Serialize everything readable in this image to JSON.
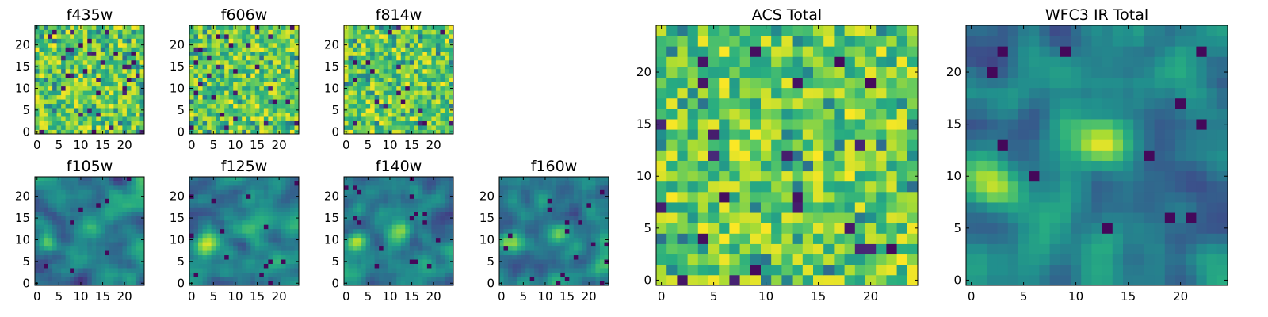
{
  "colormap": "viridis",
  "axis_frame_color": "#000000",
  "chart_data": [
    {
      "type": "heatmap",
      "title": "f435w",
      "grid": [
        25,
        25
      ],
      "xticks": [
        "0",
        "5",
        "10",
        "15",
        "20"
      ],
      "yticks": [
        "0",
        "5",
        "10",
        "15",
        "20"
      ],
      "xlim": [
        0,
        25
      ],
      "ylim": [
        0,
        25
      ],
      "pattern": "noise-uniform",
      "value_range": [
        0,
        1
      ]
    },
    {
      "type": "heatmap",
      "title": "f606w",
      "grid": [
        25,
        25
      ],
      "xticks": [
        "0",
        "5",
        "10",
        "15",
        "20"
      ],
      "yticks": [
        "0",
        "5",
        "10",
        "15",
        "20"
      ],
      "xlim": [
        0,
        25
      ],
      "ylim": [
        0,
        25
      ],
      "pattern": "noise-uniform",
      "value_range": [
        0,
        1
      ]
    },
    {
      "type": "heatmap",
      "title": "f814w",
      "grid": [
        25,
        25
      ],
      "xticks": [
        "0",
        "5",
        "10",
        "15",
        "20"
      ],
      "yticks": [
        "0",
        "5",
        "10",
        "15",
        "20"
      ],
      "xlim": [
        0,
        25
      ],
      "ylim": [
        0,
        25
      ],
      "pattern": "noise-uniform",
      "value_range": [
        0,
        1
      ]
    },
    {
      "type": "heatmap",
      "title": "f105w",
      "grid": [
        25,
        25
      ],
      "xticks": [
        "0",
        "5",
        "10",
        "15",
        "20"
      ],
      "yticks": [
        "0",
        "5",
        "10",
        "15",
        "20"
      ],
      "xlim": [
        0,
        25
      ],
      "ylim": [
        0,
        25
      ],
      "pattern": "smooth-blobs",
      "blobs": [
        {
          "x": 2.5,
          "y": 9.5,
          "amp": 0.45
        },
        {
          "x": 13,
          "y": 12.5,
          "amp": 0.3
        }
      ]
    },
    {
      "type": "heatmap",
      "title": "f125w",
      "grid": [
        25,
        25
      ],
      "xticks": [
        "0",
        "5",
        "10",
        "15",
        "20"
      ],
      "yticks": [
        "0",
        "5",
        "10",
        "15",
        "20"
      ],
      "xlim": [
        0,
        25
      ],
      "ylim": [
        0,
        25
      ],
      "pattern": "smooth-blobs",
      "blobs": [
        {
          "x": 3,
          "y": 9.5,
          "amp": 0.45
        },
        {
          "x": 13,
          "y": 12.5,
          "amp": 0.3
        }
      ]
    },
    {
      "type": "heatmap",
      "title": "f140w",
      "grid": [
        25,
        25
      ],
      "xticks": [
        "0",
        "5",
        "10",
        "15",
        "20"
      ],
      "yticks": [
        "0",
        "5",
        "10",
        "15",
        "20"
      ],
      "xlim": [
        0,
        25
      ],
      "ylim": [
        0,
        25
      ],
      "pattern": "smooth-blobs",
      "blobs": [
        {
          "x": 2.5,
          "y": 9.5,
          "amp": 0.45
        },
        {
          "x": 13,
          "y": 12.5,
          "amp": 0.3
        }
      ]
    },
    {
      "type": "heatmap",
      "title": "f160w",
      "grid": [
        25,
        25
      ],
      "xticks": [
        "0",
        "5",
        "10",
        "15",
        "20"
      ],
      "yticks": [
        "0",
        "5",
        "10",
        "15",
        "20"
      ],
      "xlim": [
        0,
        25
      ],
      "ylim": [
        0,
        25
      ],
      "pattern": "smooth-blobs",
      "blobs": [
        {
          "x": 2.5,
          "y": 9.5,
          "amp": 0.45
        },
        {
          "x": 13,
          "y": 12.5,
          "amp": 0.3
        }
      ]
    },
    {
      "type": "heatmap",
      "title": "ACS Total",
      "grid": [
        25,
        25
      ],
      "xticks": [
        "0",
        "5",
        "10",
        "15",
        "20"
      ],
      "yticks": [
        "0",
        "5",
        "10",
        "15",
        "20"
      ],
      "xlim": [
        0,
        25
      ],
      "ylim": [
        0,
        25
      ],
      "pattern": "noise-uniform",
      "value_range": [
        0,
        1
      ]
    },
    {
      "type": "heatmap",
      "title": "WFC3 IR Total",
      "grid": [
        25,
        25
      ],
      "xticks": [
        "0",
        "5",
        "10",
        "15",
        "20"
      ],
      "yticks": [
        "0",
        "5",
        "10",
        "15",
        "20"
      ],
      "xlim": [
        0,
        25
      ],
      "ylim": [
        0,
        25
      ],
      "pattern": "smooth-blobs",
      "blobs": [
        {
          "x": 2.5,
          "y": 9.5,
          "amp": 0.55
        },
        {
          "x": 12.5,
          "y": 13,
          "amp": 0.35
        }
      ]
    }
  ]
}
